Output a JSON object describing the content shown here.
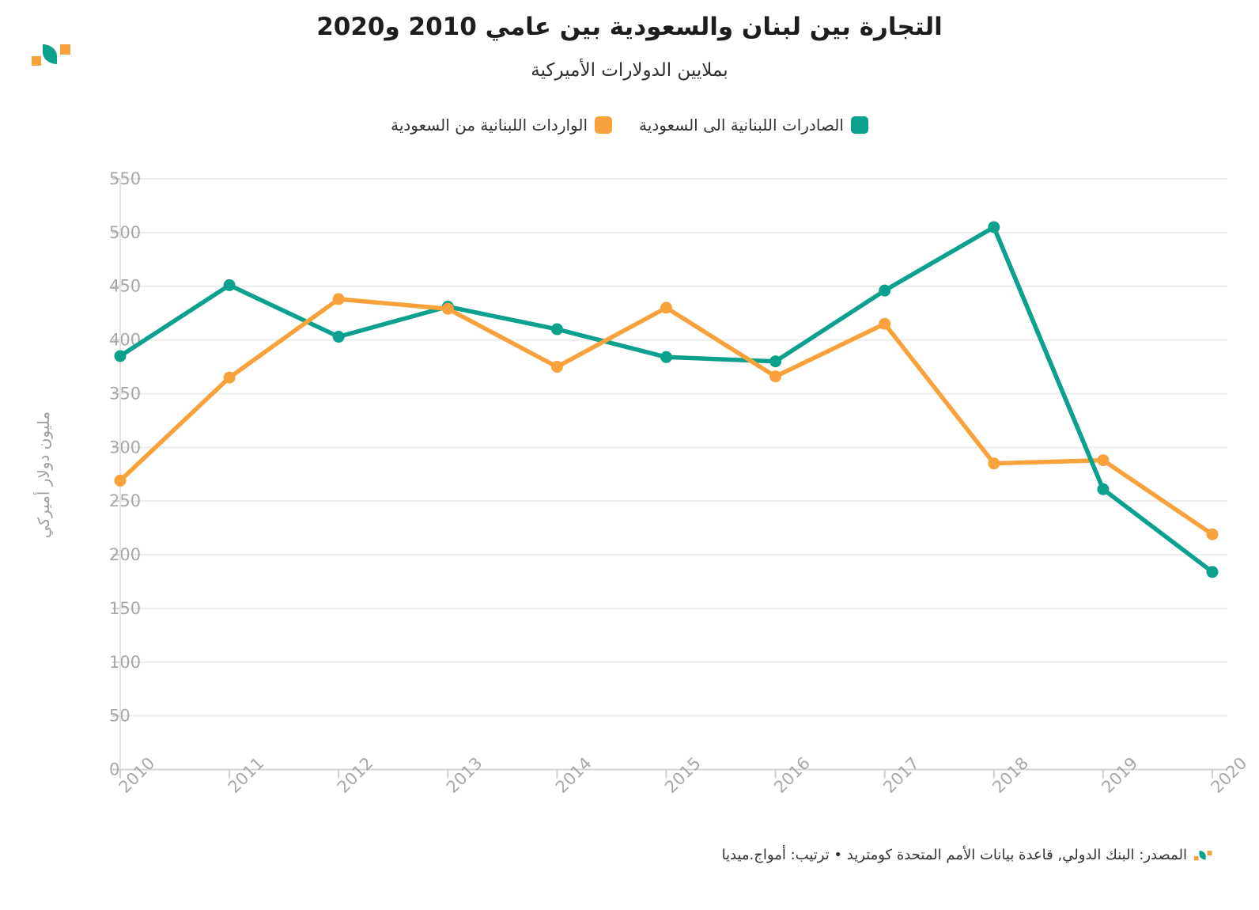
{
  "header": {
    "title": "التجارة بين لبنان والسعودية بين عامي 2010 و2020",
    "subtitle": "بملايين الدولارات الأميركية"
  },
  "colors": {
    "teal": "#0ba18d",
    "orange": "#f9a23c",
    "grid": "#ececec",
    "zero_line": "#d4d4d4",
    "tick": "#cfcfcf",
    "axis_line": "#e4e4e4",
    "axis_label": "#a8a8a8"
  },
  "legend": {
    "items": [
      {
        "label": "الصادرات اللبنانية الى السعودية",
        "color": "#0ba18d"
      },
      {
        "label": "الواردات اللبنانية من السعودية",
        "color": "#f9a23c"
      }
    ]
  },
  "chart_data": {
    "type": "line",
    "title": "التجارة بين لبنان والسعودية بين عامي 2010 و2020",
    "subtitle": "بملايين الدولارات الأميركية",
    "x": [
      2010,
      2011,
      2012,
      2013,
      2014,
      2015,
      2016,
      2017,
      2018,
      2019,
      2020
    ],
    "series": [
      {
        "name": "الصادرات اللبنانية الى السعودية",
        "color": "#0ba18d",
        "values": [
          385,
          451,
          403,
          431,
          410,
          384,
          380,
          446,
          505,
          261,
          184
        ]
      },
      {
        "name": "الواردات اللبنانية من السعودية",
        "color": "#f9a23c",
        "values": [
          269,
          365,
          438,
          429,
          375,
          430,
          366,
          415,
          285,
          288,
          219
        ]
      }
    ],
    "ylabel": "مليون دولار أميركي",
    "xlabel": "",
    "ylim": [
      0,
      550
    ],
    "yticks": [
      0,
      50,
      100,
      150,
      200,
      250,
      300,
      350,
      400,
      450,
      500,
      550
    ],
    "grid": true,
    "legend_position": "top"
  },
  "footer": {
    "text": "المصدر: البنك الدولي, قاعدة بيانات الأمم المتحدة كومتريد • ترتيب: أمواج.ميديا"
  }
}
